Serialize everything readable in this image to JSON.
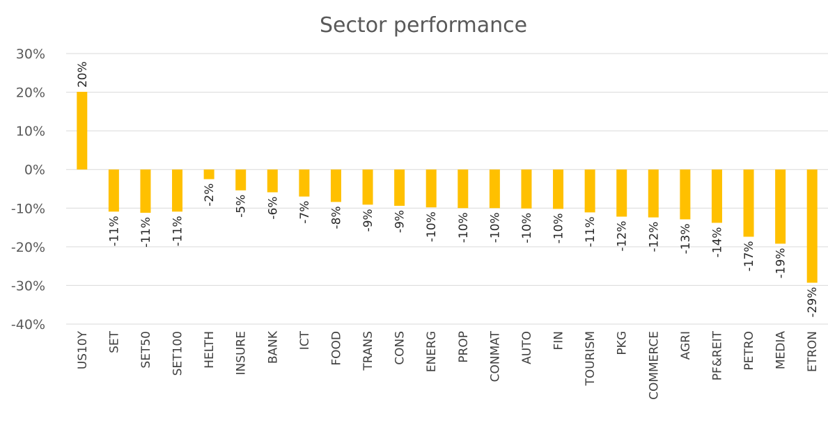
{
  "chart_data": {
    "type": "bar",
    "title": "Sector performance",
    "categories": [
      "US10Y",
      "SET",
      "SET50",
      "SET100",
      "HELTH",
      "INSURE",
      "BANK",
      "ICT",
      "FOOD",
      "TRANS",
      "CONS",
      "ENERG",
      "PROP",
      "CONMAT",
      "AUTO",
      "FIN",
      "TOURISM",
      "PKG",
      "COMMERCE",
      "AGRI",
      "PF&REIT",
      "PETRO",
      "MEDIA",
      "ETRON"
    ],
    "values": [
      20.1,
      -10.9,
      -11.2,
      -10.9,
      -2.5,
      -5.4,
      -5.9,
      -7.0,
      -8.4,
      -9.1,
      -9.4,
      -9.8,
      -10.0,
      -10.0,
      -10.1,
      -10.2,
      -11.1,
      -12.2,
      -12.4,
      -12.9,
      -13.8,
      -17.4,
      -19.2,
      -29.3
    ],
    "value_labels": [
      "20%",
      "-11%",
      "-11%",
      "-11%",
      "-2%",
      "-5%",
      "-6%",
      "-7%",
      "-8%",
      "-9%",
      "-9%",
      "-10%",
      "-10%",
      "-10%",
      "-10%",
      "-10%",
      "-11%",
      "-12%",
      "-12%",
      "-13%",
      "-14%",
      "-17%",
      "-19%",
      "-29%"
    ],
    "color": "#ffc000",
    "ylim": [
      -40,
      30
    ],
    "yticks": [
      {
        "value": -40,
        "label": "-40%"
      },
      {
        "value": -30,
        "label": "-30%"
      },
      {
        "value": -20,
        "label": "-20%"
      },
      {
        "value": -10,
        "label": "-10%"
      },
      {
        "value": 0,
        "label": "0%"
      },
      {
        "value": 10,
        "label": "10%"
      },
      {
        "value": 20,
        "label": "20%"
      },
      {
        "value": 30,
        "label": "30%"
      }
    ],
    "grid": true
  }
}
